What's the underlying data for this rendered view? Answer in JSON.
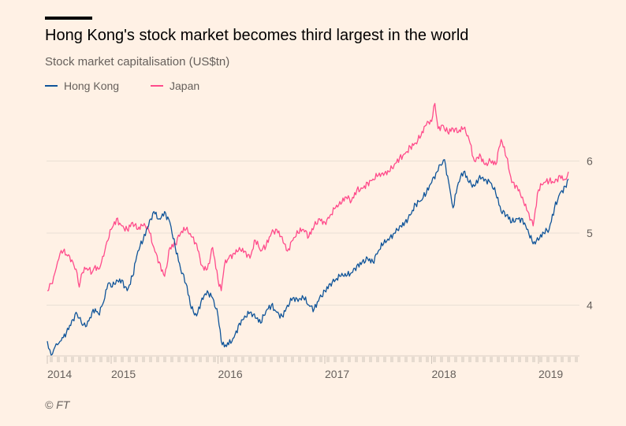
{
  "header": {
    "title": "Hong Kong's stock market becomes third largest in the world",
    "subtitle": "Stock market capitalisation (US$tn)"
  },
  "footer": {
    "credit": "© FT"
  },
  "colors": {
    "background": "#fff1e5",
    "hong_kong": "#0f5499",
    "japan": "#ff4b8b",
    "grid": "#e9dfd5",
    "text": "#66605c"
  },
  "chart_data": {
    "type": "line",
    "title": "Hong Kong's stock market becomes third largest in the world",
    "subtitle": "Stock market capitalisation (US$tn)",
    "xlabel": "",
    "ylabel": "US$tn",
    "xlim": [
      2013.99,
      2019.3
    ],
    "ylim": [
      3.3,
      6.9
    ],
    "y_ticks": [
      4,
      5,
      6
    ],
    "y_tick_labels": [
      "4",
      "5",
      "6"
    ],
    "x_ticks": [
      2014,
      2015,
      2016,
      2017,
      2018,
      2019
    ],
    "x_tick_labels": [
      "2014",
      "2015",
      "2016",
      "2017",
      "2018",
      "2019"
    ],
    "grid": true,
    "y_axis_side": "right",
    "legend": {
      "placement": "top-left",
      "entries": [
        "Hong Kong",
        "Japan"
      ]
    },
    "series": [
      {
        "name": "Hong Kong",
        "color": "#0f5499",
        "x": [
          2014.0,
          2014.04,
          2014.08,
          2014.12,
          2014.16,
          2014.2,
          2014.25,
          2014.3,
          2014.35,
          2014.4,
          2014.45,
          2014.5,
          2014.55,
          2014.6,
          2014.65,
          2014.7,
          2014.75,
          2014.8,
          2014.85,
          2014.9,
          2014.95,
          2015.0,
          2015.05,
          2015.1,
          2015.15,
          2015.2,
          2015.25,
          2015.3,
          2015.35,
          2015.4,
          2015.45,
          2015.5,
          2015.55,
          2015.6,
          2015.65,
          2015.7,
          2015.75,
          2015.8,
          2015.85,
          2015.9,
          2015.95,
          2016.0,
          2016.03,
          2016.06,
          2016.1,
          2016.15,
          2016.2,
          2016.25,
          2016.3,
          2016.35,
          2016.4,
          2016.45,
          2016.5,
          2016.55,
          2016.6,
          2016.65,
          2016.7,
          2016.75,
          2016.8,
          2016.85,
          2016.9,
          2016.95,
          2017.0,
          2017.05,
          2017.1,
          2017.15,
          2017.2,
          2017.25,
          2017.3,
          2017.35,
          2017.4,
          2017.45,
          2017.5,
          2017.55,
          2017.6,
          2017.65,
          2017.7,
          2017.75,
          2017.8,
          2017.85,
          2017.9,
          2017.95,
          2018.0,
          2018.05,
          2018.08,
          2018.12,
          2018.16,
          2018.2,
          2018.25,
          2018.3,
          2018.35,
          2018.4,
          2018.45,
          2018.5,
          2018.55,
          2018.6,
          2018.65,
          2018.7,
          2018.75,
          2018.8,
          2018.85,
          2018.9,
          2018.95,
          2019.0,
          2019.05,
          2019.1,
          2019.15,
          2019.2,
          2019.25,
          2019.28
        ],
        "values": [
          3.5,
          3.38,
          3.32,
          3.42,
          3.45,
          3.5,
          3.55,
          3.62,
          3.72,
          3.8,
          3.9,
          3.82,
          3.72,
          3.7,
          3.78,
          3.9,
          3.95,
          3.88,
          3.98,
          4.1,
          4.3,
          4.25,
          4.35,
          4.35,
          4.2,
          4.4,
          4.75,
          4.9,
          5.1,
          5.3,
          5.2,
          5.3,
          5.15,
          4.8,
          4.5,
          4.3,
          3.95,
          3.85,
          4.1,
          4.2,
          4.1,
          3.85,
          3.5,
          3.42,
          3.45,
          3.55,
          3.75,
          3.85,
          3.9,
          3.82,
          3.75,
          3.92,
          4.0,
          3.9,
          3.85,
          4.0,
          4.1,
          4.05,
          4.1,
          4.0,
          3.95,
          4.1,
          4.2,
          4.3,
          4.35,
          4.4,
          4.4,
          4.45,
          4.55,
          4.6,
          4.65,
          4.6,
          4.75,
          4.85,
          4.9,
          5.0,
          5.1,
          5.15,
          5.25,
          5.4,
          5.45,
          5.55,
          5.7,
          5.85,
          5.95,
          6.02,
          5.7,
          5.35,
          5.7,
          5.85,
          5.7,
          5.65,
          5.8,
          5.75,
          5.7,
          5.55,
          5.3,
          5.25,
          5.15,
          5.2,
          5.2,
          5.05,
          4.85,
          4.9,
          5.0,
          5.05,
          5.35,
          5.55,
          5.65,
          5.75
        ]
      },
      {
        "name": "Japan",
        "color": "#ff4b8b",
        "x": [
          2014.0,
          2014.04,
          2014.08,
          2014.12,
          2014.16,
          2014.2,
          2014.25,
          2014.3,
          2014.35,
          2014.4,
          2014.45,
          2014.5,
          2014.55,
          2014.6,
          2014.65,
          2014.7,
          2014.75,
          2014.8,
          2014.85,
          2014.9,
          2014.95,
          2015.0,
          2015.05,
          2015.1,
          2015.15,
          2015.2,
          2015.25,
          2015.3,
          2015.35,
          2015.4,
          2015.45,
          2015.5,
          2015.55,
          2015.6,
          2015.65,
          2015.7,
          2015.75,
          2015.8,
          2015.85,
          2015.9,
          2015.95,
          2016.0,
          2016.03,
          2016.06,
          2016.1,
          2016.15,
          2016.2,
          2016.25,
          2016.3,
          2016.35,
          2016.4,
          2016.45,
          2016.5,
          2016.55,
          2016.6,
          2016.65,
          2016.7,
          2016.75,
          2016.8,
          2016.85,
          2016.9,
          2016.95,
          2017.0,
          2017.05,
          2017.1,
          2017.15,
          2017.2,
          2017.25,
          2017.3,
          2017.35,
          2017.4,
          2017.45,
          2017.5,
          2017.55,
          2017.6,
          2017.65,
          2017.7,
          2017.75,
          2017.8,
          2017.85,
          2017.9,
          2017.95,
          2018.0,
          2018.03,
          2018.06,
          2018.1,
          2018.15,
          2018.2,
          2018.25,
          2018.3,
          2018.35,
          2018.4,
          2018.45,
          2018.5,
          2018.55,
          2018.6,
          2018.65,
          2018.7,
          2018.75,
          2018.8,
          2018.85,
          2018.9,
          2018.95,
          2019.0,
          2019.05,
          2019.1,
          2019.15,
          2019.2,
          2019.25,
          2019.28
        ],
        "values": [
          4.2,
          4.3,
          4.3,
          4.45,
          4.6,
          4.72,
          4.75,
          4.7,
          4.68,
          4.6,
          4.5,
          4.25,
          4.45,
          4.5,
          4.5,
          4.45,
          4.55,
          4.5,
          4.6,
          4.75,
          4.9,
          5.05,
          5.2,
          5.1,
          5.05,
          5.15,
          5.05,
          5.1,
          5.05,
          4.8,
          4.6,
          4.4,
          4.8,
          4.85,
          5.0,
          5.05,
          4.95,
          4.85,
          4.55,
          4.5,
          4.8,
          4.35,
          4.2,
          4.55,
          4.65,
          4.72,
          4.8,
          4.75,
          4.65,
          4.9,
          4.75,
          4.82,
          5.0,
          5.05,
          4.95,
          4.75,
          4.9,
          5.0,
          5.05,
          4.95,
          5.1,
          5.2,
          5.15,
          5.25,
          5.35,
          5.4,
          5.5,
          5.45,
          5.6,
          5.62,
          5.7,
          5.75,
          5.8,
          5.8,
          5.85,
          5.95,
          6.05,
          6.1,
          6.2,
          6.25,
          6.35,
          6.5,
          6.55,
          6.8,
          6.45,
          6.5,
          6.4,
          6.45,
          6.4,
          6.45,
          6.3,
          6.0,
          6.1,
          5.95,
          6.0,
          5.95,
          6.3,
          6.05,
          5.7,
          5.65,
          5.5,
          5.3,
          5.1,
          5.6,
          5.7,
          5.72,
          5.7,
          5.8,
          5.75,
          5.85
        ]
      }
    ]
  }
}
